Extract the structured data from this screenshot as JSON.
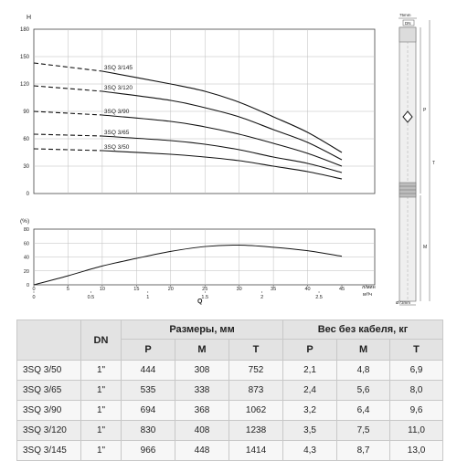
{
  "chart_data": [
    {
      "type": "line",
      "title": "",
      "ylabel": "H",
      "xlabel": "Q",
      "x_unit_top": "л/мин",
      "x_unit_bottom": "м³/ч",
      "ylim": [
        0,
        180
      ],
      "xlim": [
        0,
        45
      ],
      "y_ticks": [
        "0",
        "30",
        "60",
        "90",
        "120",
        "150",
        "180"
      ],
      "x_ticks_lpm": [
        "0",
        "5",
        "10",
        "15",
        "20",
        "25",
        "30",
        "35",
        "40",
        "45"
      ],
      "x_ticks_m3h": [
        "0",
        "0.5",
        "1",
        "1.5",
        "2",
        "2.5"
      ],
      "grid": true,
      "series": [
        {
          "name": "3SQ 3/145",
          "x": [
            0,
            10,
            20,
            25,
            30,
            35,
            40,
            45
          ],
          "y": [
            143,
            134,
            120,
            112,
            100,
            84,
            67,
            45
          ]
        },
        {
          "name": "3SQ 3/120",
          "x": [
            0,
            10,
            20,
            25,
            30,
            35,
            40,
            45
          ],
          "y": [
            118,
            112,
            102,
            94,
            84,
            70,
            56,
            37
          ]
        },
        {
          "name": "3SQ 3/90",
          "x": [
            0,
            10,
            20,
            25,
            30,
            35,
            40,
            45
          ],
          "y": [
            90,
            86,
            79,
            73,
            65,
            55,
            44,
            30
          ]
        },
        {
          "name": "3SQ 3/65",
          "x": [
            0,
            10,
            20,
            25,
            30,
            35,
            40,
            45
          ],
          "y": [
            65,
            63,
            58,
            54,
            48,
            40,
            33,
            23
          ]
        },
        {
          "name": "3SQ 3/50",
          "x": [
            0,
            10,
            20,
            25,
            30,
            35,
            40,
            45
          ],
          "y": [
            49,
            47,
            43,
            40,
            36,
            30,
            24,
            16
          ]
        }
      ]
    },
    {
      "type": "line",
      "title": "",
      "ylabel": "(%)",
      "ylim": [
        0,
        80
      ],
      "xlim": [
        0,
        45
      ],
      "y_ticks": [
        "0",
        "20",
        "40",
        "60",
        "80"
      ],
      "grid": true,
      "series": [
        {
          "name": "",
          "x": [
            0,
            5,
            10,
            15,
            20,
            25,
            30,
            35,
            40,
            45
          ],
          "y": [
            0,
            13,
            27,
            38,
            48,
            55,
            57,
            54,
            49,
            41
          ]
        }
      ]
    }
  ],
  "diagram": {
    "labels": [
      "75mm",
      "DN",
      "P",
      "T",
      "M",
      "Ø73mm"
    ]
  },
  "table": {
    "col_dn": "DN",
    "group_sizes": "Размеры, мм",
    "group_weight": "Вес без кабеля, кг",
    "sub_headers": [
      "P",
      "M",
      "T",
      "P",
      "M",
      "T"
    ],
    "rows": [
      {
        "model": "3SQ 3/50",
        "dn": "1\"",
        "p": "444",
        "m": "308",
        "t": "752",
        "wp": "2,1",
        "wm": "4,8",
        "wt": "6,9"
      },
      {
        "model": "3SQ 3/65",
        "dn": "1\"",
        "p": "535",
        "m": "338",
        "t": "873",
        "wp": "2,4",
        "wm": "5,6",
        "wt": "8,0"
      },
      {
        "model": "3SQ 3/90",
        "dn": "1\"",
        "p": "694",
        "m": "368",
        "t": "1062",
        "wp": "3,2",
        "wm": "6,4",
        "wt": "9,6"
      },
      {
        "model": "3SQ 3/120",
        "dn": "1\"",
        "p": "830",
        "m": "408",
        "t": "1238",
        "wp": "3,5",
        "wm": "7,5",
        "wt": "11,0"
      },
      {
        "model": "3SQ 3/145",
        "dn": "1\"",
        "p": "966",
        "m": "448",
        "t": "1414",
        "wp": "4,3",
        "wm": "8,7",
        "wt": "13,0"
      }
    ]
  }
}
